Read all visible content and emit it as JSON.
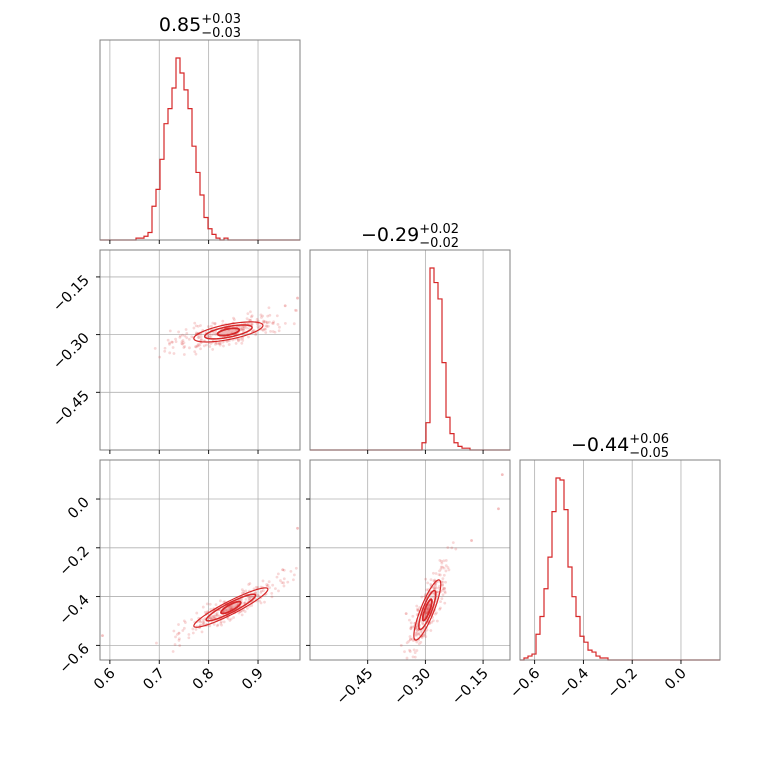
{
  "chart_data": {
    "type": "corner",
    "color": "#d62728",
    "grid": true,
    "axes_ranges": {
      "p0": [
        0.58,
        0.985
      ],
      "p1": [
        -0.6,
        -0.08
      ],
      "p2": [
        -0.66,
        0.16
      ]
    },
    "titles": [
      {
        "value": "0.85",
        "sup": "+0.03",
        "sub": "−0.03"
      },
      {
        "value": "−0.29",
        "sup": "+0.02",
        "sub": "−0.02"
      },
      {
        "value": "−0.44",
        "sup": "+0.06",
        "sub": "−0.05"
      }
    ],
    "ticks": {
      "p0": [
        {
          "v": 0.6,
          "label": "0.6"
        },
        {
          "v": 0.7,
          "label": "0.7"
        },
        {
          "v": 0.8,
          "label": "0.8"
        },
        {
          "v": 0.9,
          "label": "0.9"
        }
      ],
      "p1": [
        {
          "v": -0.45,
          "label": "−0.45"
        },
        {
          "v": -0.3,
          "label": "−0.30"
        },
        {
          "v": -0.15,
          "label": "−0.15"
        }
      ],
      "p2": [
        {
          "v": -0.6,
          "label": "−0.6"
        },
        {
          "v": -0.4,
          "label": "−0.4"
        },
        {
          "v": -0.2,
          "label": "−0.2"
        },
        {
          "v": 0.0,
          "label": "0.0"
        }
      ]
    },
    "histograms": [
      {
        "param": "p0",
        "edges_start": 0.58,
        "bin_width": 0.0081,
        "counts": [
          0,
          0,
          0,
          0,
          0,
          0,
          0,
          0,
          0,
          1,
          1,
          2,
          4,
          18,
          27,
          43,
          62,
          70,
          81,
          97,
          89,
          80,
          70,
          50,
          36,
          24,
          12,
          6,
          3,
          1,
          0,
          1,
          0,
          0,
          0,
          0,
          0,
          0,
          0,
          0,
          0,
          0,
          0,
          0,
          0,
          0,
          0,
          0,
          0,
          0
        ]
      },
      {
        "param": "p1",
        "edges_start": -0.6,
        "bin_width": 0.0104,
        "counts": [
          0,
          0,
          0,
          0,
          0,
          0,
          0,
          0,
          0,
          0,
          0,
          0,
          0,
          0,
          0,
          0,
          0,
          0,
          0,
          0,
          0,
          0,
          0,
          0,
          0,
          0,
          0,
          0,
          4,
          15,
          100,
          92,
          83,
          48,
          18,
          9,
          4,
          2,
          1,
          1,
          0,
          0,
          0,
          0,
          0,
          0,
          0,
          0,
          0,
          0
        ]
      },
      {
        "param": "p2",
        "edges_start": -0.66,
        "bin_width": 0.0164,
        "counts": [
          0,
          1,
          2,
          3,
          13,
          22,
          36,
          52,
          75,
          92,
          91,
          76,
          47,
          32,
          22,
          12,
          9,
          5,
          4,
          2,
          1,
          1,
          0,
          0,
          0,
          0,
          0,
          0,
          0,
          0,
          0,
          0,
          0,
          0,
          0,
          0,
          0,
          0,
          0,
          0,
          0,
          0,
          0,
          0,
          0,
          0,
          0,
          0,
          0,
          0
        ]
      }
    ],
    "pairs": [
      {
        "x": "p0",
        "y": "p1",
        "outliers": [
          [
            0.775,
            -0.3
          ],
          [
            0.98,
            -0.205
          ],
          [
            0.785,
            -0.32
          ],
          [
            0.955,
            -0.225
          ]
        ],
        "contours": [
          {
            "cx": 0.84,
            "cy": -0.293,
            "ex": 0.022,
            "ey": 0.008,
            "slope": 0.24
          },
          {
            "cx": 0.84,
            "cy": -0.293,
            "ex": 0.048,
            "ey": 0.014,
            "slope": 0.24
          },
          {
            "cx": 0.84,
            "cy": -0.293,
            "ex": 0.07,
            "ey": 0.02,
            "slope": 0.24
          }
        ]
      },
      {
        "x": "p0",
        "y": "p2",
        "outliers": [
          [
            0.585,
            -0.56
          ],
          [
            0.98,
            -0.12
          ],
          [
            0.74,
            -0.55
          ],
          [
            0.95,
            -0.29
          ]
        ],
        "contours": [
          {
            "cx": 0.845,
            "cy": -0.445,
            "ex": 0.02,
            "ey": 0.014,
            "slope": 1.0
          },
          {
            "cx": 0.845,
            "cy": -0.445,
            "ex": 0.05,
            "ey": 0.022,
            "slope": 1.0
          },
          {
            "cx": 0.845,
            "cy": -0.445,
            "ex": 0.075,
            "ey": 0.03,
            "slope": 1.0
          }
        ]
      },
      {
        "x": "p1",
        "y": "p2",
        "outliers": [
          [
            -0.1,
            0.1
          ],
          [
            -0.11,
            -0.04
          ],
          [
            -0.35,
            -0.47
          ],
          [
            -0.18,
            -0.17
          ]
        ],
        "contours": [
          {
            "cx": -0.295,
            "cy": -0.455,
            "ex": 0.012,
            "ey": 0.025,
            "slope": 3.0
          },
          {
            "cx": -0.295,
            "cy": -0.455,
            "ex": 0.022,
            "ey": 0.045,
            "slope": 3.0
          },
          {
            "cx": -0.295,
            "cy": -0.455,
            "ex": 0.035,
            "ey": 0.065,
            "slope": 3.0
          }
        ]
      }
    ]
  }
}
